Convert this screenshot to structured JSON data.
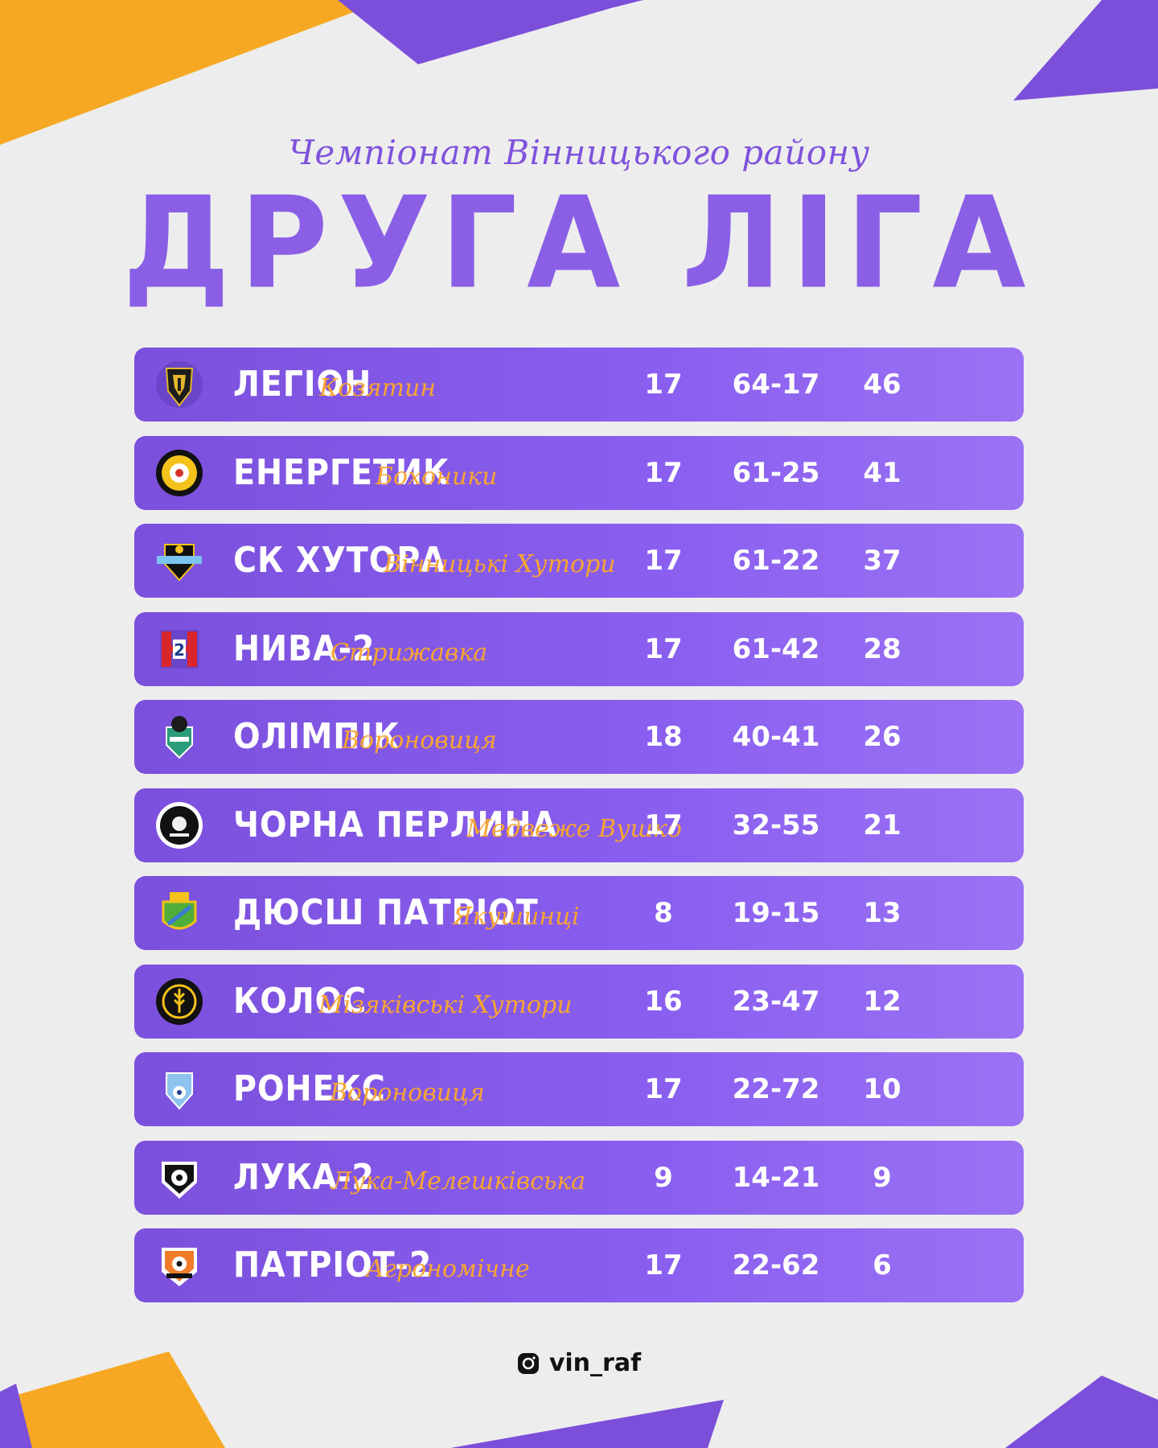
{
  "header": {
    "subtitle": "Чемпіонат Вінницького району",
    "title": "ДРУГА ЛІГА"
  },
  "teams": [
    {
      "name": "ЛЕГІОН",
      "city": "Козятин",
      "games": "17",
      "goals": "64-17",
      "points": "46",
      "logo": "helmet-crest-icon"
    },
    {
      "name": "ЕНЕРГЕТИК",
      "city": "Бохоники",
      "games": "17",
      "goals": "61-25",
      "points": "41",
      "logo": "round-ball-crest-icon"
    },
    {
      "name": "СК ХУТОРА",
      "city": "Вінницькі Хутори",
      "games": "17",
      "goals": "61-22",
      "points": "37",
      "logo": "shield-banner-crest-icon"
    },
    {
      "name": "НИВА-2",
      "city": "Стрижавка",
      "games": "17",
      "goals": "61-42",
      "points": "28",
      "logo": "letter-h2-crest-icon"
    },
    {
      "name": "ОЛІМПІК",
      "city": "Вороновиця",
      "games": "18",
      "goals": "40-41",
      "points": "26",
      "logo": "knight-shield-crest-icon"
    },
    {
      "name": "ЧОРНА ПЕРЛИНА",
      "city": "Медвеже Вушко",
      "games": "17",
      "goals": "32-55",
      "points": "21",
      "logo": "pirate-round-crest-icon"
    },
    {
      "name": "ДЮСШ ПАТРІОТ",
      "city": "Якушинці",
      "games": "8",
      "goals": "19-15",
      "points": "13",
      "logo": "green-shield-crest-icon"
    },
    {
      "name": "КОЛОС",
      "city": "Мізяківські Хутори",
      "games": "16",
      "goals": "23-47",
      "points": "12",
      "logo": "wheat-round-crest-icon"
    },
    {
      "name": "РОНЕКС",
      "city": "Вороновиця",
      "games": "17",
      "goals": "22-72",
      "points": "10",
      "logo": "blue-shield-crest-icon"
    },
    {
      "name": "ЛУКА-2",
      "city": "Лука-Мелешківська",
      "games": "9",
      "goals": "14-21",
      "points": "9",
      "logo": "ball-shield-crest-icon"
    },
    {
      "name": "ПАТРІОТ-2",
      "city": "Агрономічне",
      "games": "17",
      "goals": "22-62",
      "points": "6",
      "logo": "orange-ball-shield-crest-icon"
    }
  ],
  "footer": {
    "handle": "vin_raf",
    "icon": "instagram-icon"
  },
  "colors": {
    "accent_purple": "#8a5fe6",
    "accent_orange": "#f6a532",
    "background": "#eeeded"
  }
}
